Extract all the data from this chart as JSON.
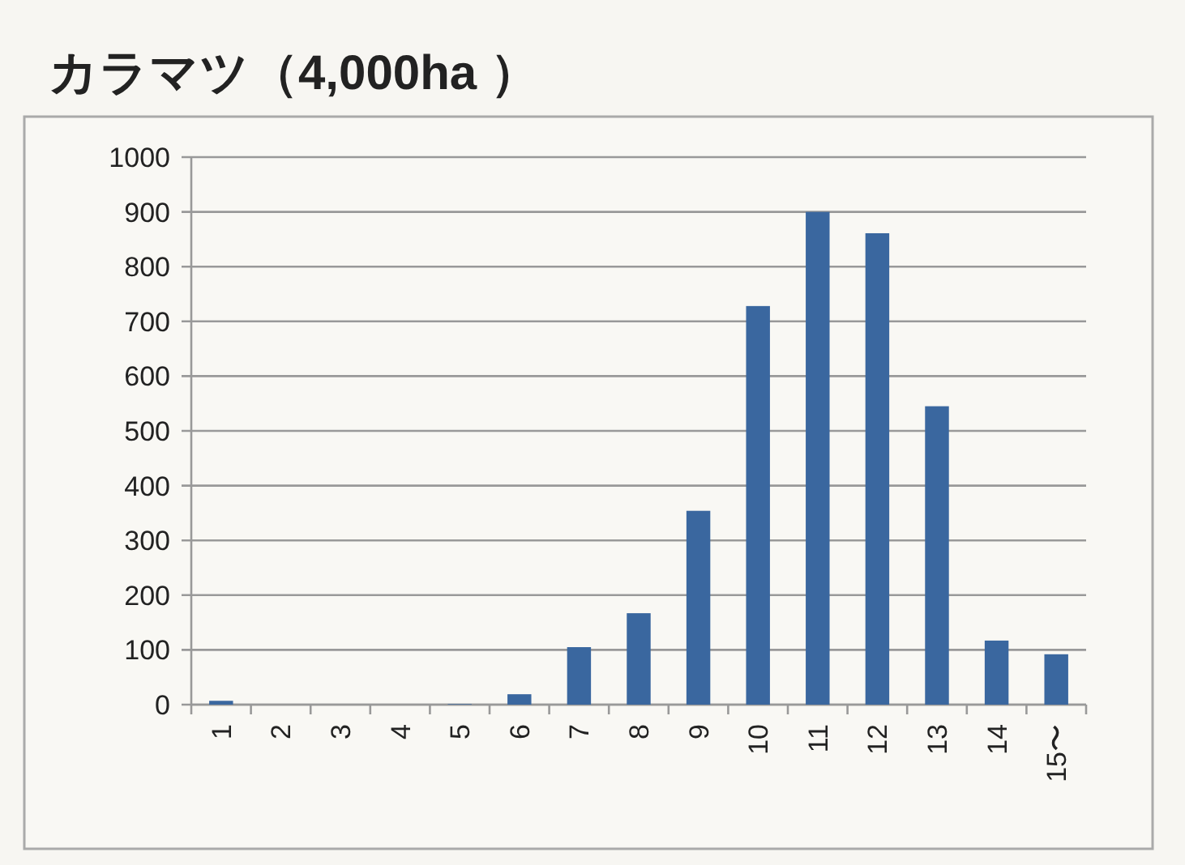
{
  "chart_data": {
    "type": "bar",
    "title": "カラマツ（4,000ha ）",
    "categories": [
      "1",
      "2",
      "3",
      "4",
      "5",
      "6",
      "7",
      "8",
      "9",
      "10",
      "11",
      "12",
      "13",
      "14",
      "15〜"
    ],
    "values": [
      7,
      0,
      0,
      0,
      1,
      19,
      105,
      167,
      354,
      728,
      900,
      861,
      545,
      117,
      92
    ],
    "color": "#3a679f",
    "ylim": [
      0,
      1000
    ],
    "yticks": [
      0,
      100,
      200,
      300,
      400,
      500,
      600,
      700,
      800,
      900,
      1000
    ],
    "grid": "y"
  }
}
